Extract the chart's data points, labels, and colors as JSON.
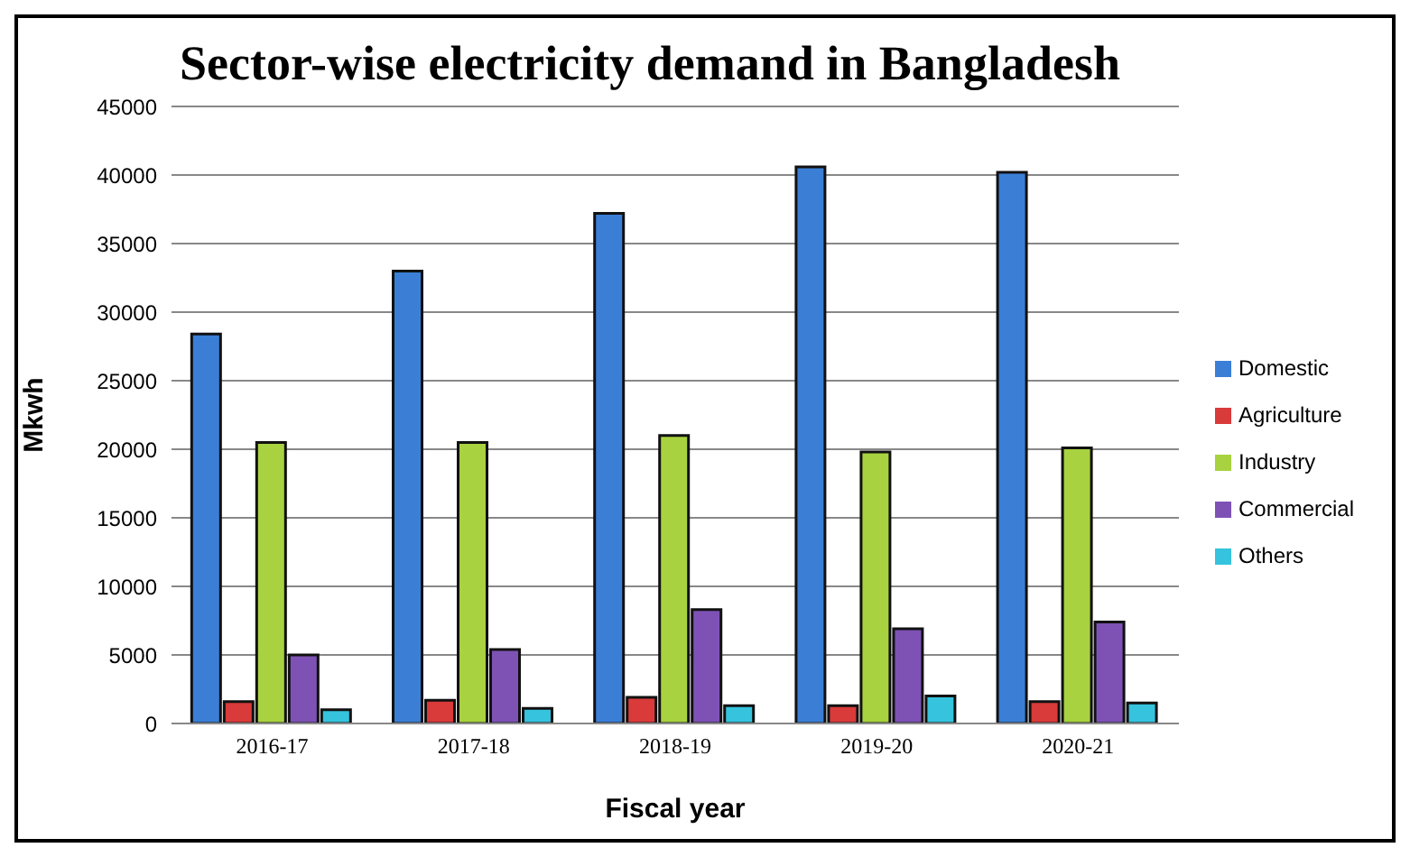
{
  "chart_data": {
    "type": "bar",
    "title": "Sector-wise electricity demand in Bangladesh",
    "xlabel": "Fiscal year",
    "ylabel": "Mkwh",
    "categories": [
      "2016-17",
      "2017-18",
      "2018-19",
      "2019-20",
      "2020-21"
    ],
    "series": [
      {
        "name": "Domestic",
        "color": "#3a7fd5",
        "values": [
          28400,
          33000,
          37200,
          40600,
          40200
        ]
      },
      {
        "name": "Agriculture",
        "color": "#d93a3a",
        "values": [
          1600,
          1700,
          1900,
          1300,
          1600
        ]
      },
      {
        "name": "Industry",
        "color": "#a8d23f",
        "values": [
          20500,
          20500,
          21000,
          19800,
          20100
        ]
      },
      {
        "name": "Commercial",
        "color": "#7e52b5",
        "values": [
          5000,
          5400,
          8300,
          6900,
          7400
        ]
      },
      {
        "name": "Others",
        "color": "#35c3dd",
        "values": [
          1000,
          1100,
          1300,
          2000,
          1500
        ]
      }
    ],
    "ylim": [
      0,
      45000
    ],
    "yticks": [
      0,
      5000,
      10000,
      15000,
      20000,
      25000,
      30000,
      35000,
      40000,
      45000
    ],
    "grid": "y",
    "legend": "right"
  }
}
